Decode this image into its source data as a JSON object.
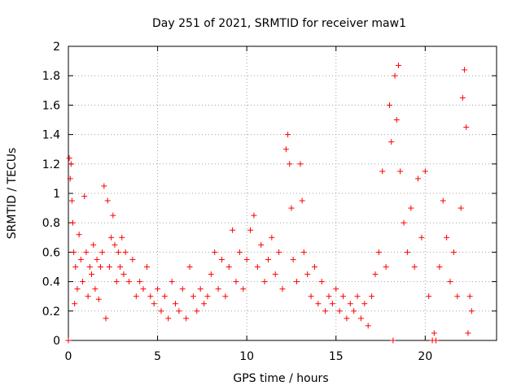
{
  "chart_data": {
    "type": "scatter",
    "title": "Day 251 of 2021, SRMTID for receiver maw1",
    "xlabel": "GPS time / hours",
    "ylabel": "SRMTID / TECUs",
    "xlim": [
      0,
      24
    ],
    "ylim": [
      0,
      2
    ],
    "x_ticks": [
      0,
      5,
      10,
      15,
      20
    ],
    "x_tick_labels": [
      "0",
      "5",
      "10",
      "15",
      "20"
    ],
    "y_ticks": [
      0,
      0.2,
      0.4,
      0.6,
      0.8,
      1,
      1.2,
      1.4,
      1.6,
      1.8,
      2
    ],
    "y_tick_labels": [
      "0",
      "0.2",
      "0.4",
      "0.6",
      "0.8",
      "1",
      "1.2",
      "1.4",
      "1.6",
      "1.8",
      "2"
    ],
    "grid": true,
    "marker": "+",
    "series": [
      {
        "name": "SRMTID",
        "color": "#ff0000",
        "points": [
          [
            0.0,
            0.0
          ],
          [
            0.05,
            1.24
          ],
          [
            0.1,
            1.1
          ],
          [
            0.15,
            1.2
          ],
          [
            0.2,
            0.95
          ],
          [
            0.25,
            0.8
          ],
          [
            0.3,
            0.6
          ],
          [
            0.35,
            0.25
          ],
          [
            0.4,
            0.5
          ],
          [
            0.5,
            0.35
          ],
          [
            0.6,
            0.72
          ],
          [
            0.7,
            0.55
          ],
          [
            0.8,
            0.4
          ],
          [
            0.9,
            0.98
          ],
          [
            1.0,
            0.6
          ],
          [
            1.1,
            0.3
          ],
          [
            1.2,
            0.5
          ],
          [
            1.3,
            0.45
          ],
          [
            1.4,
            0.65
          ],
          [
            1.5,
            0.35
          ],
          [
            1.6,
            0.55
          ],
          [
            1.7,
            0.28
          ],
          [
            1.8,
            0.5
          ],
          [
            1.9,
            0.6
          ],
          [
            2.0,
            1.05
          ],
          [
            2.1,
            0.15
          ],
          [
            2.2,
            0.95
          ],
          [
            2.3,
            0.5
          ],
          [
            2.4,
            0.7
          ],
          [
            2.5,
            0.85
          ],
          [
            2.6,
            0.65
          ],
          [
            2.7,
            0.4
          ],
          [
            2.8,
            0.6
          ],
          [
            2.9,
            0.5
          ],
          [
            3.0,
            0.7
          ],
          [
            3.1,
            0.45
          ],
          [
            3.2,
            0.6
          ],
          [
            3.4,
            0.4
          ],
          [
            3.6,
            0.55
          ],
          [
            3.8,
            0.3
          ],
          [
            4.0,
            0.4
          ],
          [
            4.2,
            0.35
          ],
          [
            4.4,
            0.5
          ],
          [
            4.6,
            0.3
          ],
          [
            4.8,
            0.25
          ],
          [
            5.0,
            0.35
          ],
          [
            5.2,
            0.2
          ],
          [
            5.4,
            0.3
          ],
          [
            5.6,
            0.15
          ],
          [
            5.8,
            0.4
          ],
          [
            6.0,
            0.25
          ],
          [
            6.2,
            0.2
          ],
          [
            6.4,
            0.35
          ],
          [
            6.6,
            0.15
          ],
          [
            6.8,
            0.5
          ],
          [
            7.0,
            0.3
          ],
          [
            7.2,
            0.2
          ],
          [
            7.4,
            0.35
          ],
          [
            7.6,
            0.25
          ],
          [
            7.8,
            0.3
          ],
          [
            8.0,
            0.45
          ],
          [
            8.2,
            0.6
          ],
          [
            8.4,
            0.35
          ],
          [
            8.6,
            0.55
          ],
          [
            8.8,
            0.3
          ],
          [
            9.0,
            0.5
          ],
          [
            9.2,
            0.75
          ],
          [
            9.4,
            0.4
          ],
          [
            9.6,
            0.6
          ],
          [
            9.8,
            0.35
          ],
          [
            10.0,
            0.55
          ],
          [
            10.2,
            0.75
          ],
          [
            10.4,
            0.85
          ],
          [
            10.6,
            0.5
          ],
          [
            10.8,
            0.65
          ],
          [
            11.0,
            0.4
          ],
          [
            11.2,
            0.55
          ],
          [
            11.4,
            0.7
          ],
          [
            11.6,
            0.45
          ],
          [
            11.8,
            0.6
          ],
          [
            12.0,
            0.35
          ],
          [
            12.2,
            1.3
          ],
          [
            12.3,
            1.4
          ],
          [
            12.4,
            1.2
          ],
          [
            12.5,
            0.9
          ],
          [
            12.6,
            0.55
          ],
          [
            12.8,
            0.4
          ],
          [
            13.0,
            1.2
          ],
          [
            13.1,
            0.95
          ],
          [
            13.2,
            0.6
          ],
          [
            13.4,
            0.45
          ],
          [
            13.6,
            0.3
          ],
          [
            13.8,
            0.5
          ],
          [
            14.0,
            0.25
          ],
          [
            14.2,
            0.4
          ],
          [
            14.4,
            0.2
          ],
          [
            14.6,
            0.3
          ],
          [
            14.8,
            0.25
          ],
          [
            15.0,
            0.35
          ],
          [
            15.2,
            0.2
          ],
          [
            15.4,
            0.3
          ],
          [
            15.6,
            0.15
          ],
          [
            15.8,
            0.25
          ],
          [
            16.0,
            0.2
          ],
          [
            16.2,
            0.3
          ],
          [
            16.4,
            0.15
          ],
          [
            16.6,
            0.25
          ],
          [
            16.8,
            0.1
          ],
          [
            17.0,
            0.3
          ],
          [
            17.2,
            0.45
          ],
          [
            17.4,
            0.6
          ],
          [
            17.6,
            1.15
          ],
          [
            17.8,
            0.5
          ],
          [
            18.0,
            1.6
          ],
          [
            18.1,
            1.35
          ],
          [
            18.2,
            0.0
          ],
          [
            18.3,
            1.8
          ],
          [
            18.4,
            1.5
          ],
          [
            18.5,
            1.87
          ],
          [
            18.6,
            1.15
          ],
          [
            18.8,
            0.8
          ],
          [
            19.0,
            0.6
          ],
          [
            19.2,
            0.9
          ],
          [
            19.4,
            0.5
          ],
          [
            19.6,
            1.1
          ],
          [
            19.8,
            0.7
          ],
          [
            20.0,
            1.15
          ],
          [
            20.2,
            0.3
          ],
          [
            20.4,
            0.0
          ],
          [
            20.5,
            0.05
          ],
          [
            20.6,
            0.0
          ],
          [
            20.8,
            0.5
          ],
          [
            21.0,
            0.95
          ],
          [
            21.2,
            0.7
          ],
          [
            21.4,
            0.4
          ],
          [
            21.6,
            0.6
          ],
          [
            21.8,
            0.3
          ],
          [
            22.0,
            0.9
          ],
          [
            22.1,
            1.65
          ],
          [
            22.2,
            1.84
          ],
          [
            22.3,
            1.45
          ],
          [
            22.4,
            0.05
          ],
          [
            22.5,
            0.3
          ],
          [
            22.6,
            0.2
          ]
        ]
      }
    ]
  }
}
